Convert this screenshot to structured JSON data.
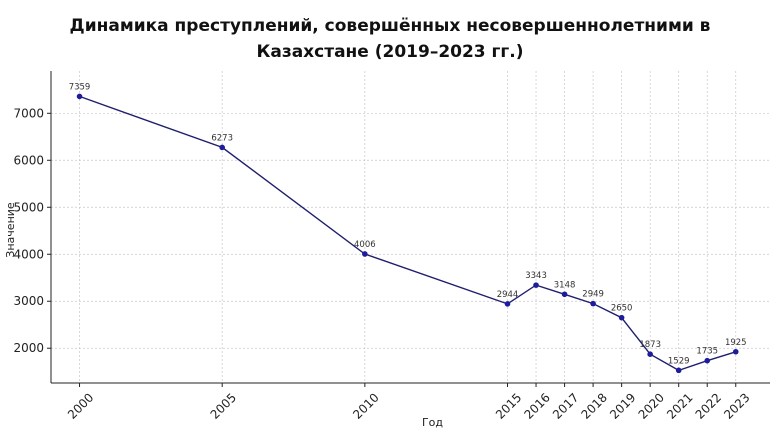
{
  "chart_data": {
    "type": "line",
    "title": [
      "Динамика преступлений, совершённых несовершеннолетними в",
      "Казахстане (2019–2023 гг.)"
    ],
    "xlabel": "Год",
    "ylabel": "Значение",
    "x": [
      2000,
      2005,
      2010,
      2015,
      2016,
      2017,
      2018,
      2019,
      2020,
      2021,
      2022,
      2023
    ],
    "x_tick_labels": [
      "2000",
      "2005",
      "2010",
      "2015",
      "2016",
      "2017",
      "2018",
      "2019",
      "2020",
      "2021",
      "2022",
      "2023"
    ],
    "series": [
      {
        "values": [
          7359,
          6273,
          4006,
          2944,
          3343,
          3148,
          2949,
          2650,
          1873,
          1529,
          1735,
          1925
        ],
        "data_labels": [
          "7359",
          "6273",
          "4006",
          "2944",
          "3343",
          "3148",
          "2949",
          "2650",
          "1873",
          "1529",
          "1735",
          "1925"
        ]
      }
    ],
    "y_ticks": [
      2000,
      3000,
      4000,
      5000,
      6000,
      7000
    ],
    "y_tick_labels": [
      "2000",
      "3000",
      "4000",
      "5000",
      "6000",
      "7000"
    ],
    "ylim": [
      1260,
      7900
    ],
    "xlim": [
      1999,
      2024.2
    ],
    "grid": true,
    "line_color": "#1f1f6e",
    "marker_color": "#1c1c9c",
    "grid_color": "#c8c8c8"
  }
}
